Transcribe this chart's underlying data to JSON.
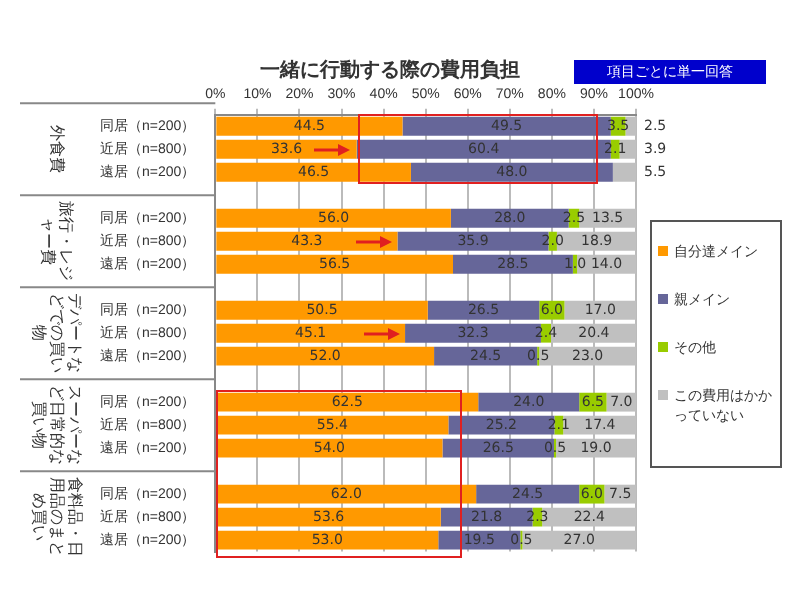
{
  "chart_data": {
    "type": "bar",
    "orientation": "horizontal",
    "stacked": true,
    "title": "一緒に行動する際の費用負担",
    "annotations": [
      "項目ごとに単一回答",
      "外食費",
      "旅行・レジャー費",
      "デパートなどでの買い物",
      "スーパーなど日常的な買い物",
      "食料品・日用品のまとめ買い"
    ],
    "categories": [
      "同居（n=200）",
      "近居（n=800）",
      "遠居（n=200）",
      null,
      "同居（n=200）",
      "近居（n=800）",
      "遠居（n=200）",
      null,
      "同居（n=200）",
      "近居（n=800）",
      "遠居（n=200）",
      null,
      "同居（n=200）",
      "近居（n=800）",
      "遠居（n=200）",
      null,
      "同居（n=200）",
      "近居（n=800）",
      "遠居（n=200）"
    ],
    "series": [
      {
        "name": "自分達メイン",
        "color": "#ff9900",
        "values": [
          44.5,
          33.6,
          46.5,
          null,
          56.0,
          43.3,
          56.5,
          null,
          50.5,
          45.1,
          52.0,
          null,
          62.5,
          55.4,
          54.0,
          null,
          62.0,
          53.6,
          53.0
        ],
        "value_labels": [
          "44.5",
          "33.6",
          "46.5",
          null,
          "56.0",
          "43.3",
          "56.5",
          null,
          "50.5",
          "45.1",
          "52.0",
          null,
          "62.5",
          "55.4",
          "54.0",
          null,
          "62.0",
          "53.6",
          "53.0"
        ]
      },
      {
        "name": "親メイン",
        "color": "#666699",
        "values": [
          49.5,
          60.4,
          48.0,
          null,
          28.0,
          35.9,
          28.5,
          null,
          26.5,
          32.3,
          24.5,
          null,
          24.0,
          25.2,
          26.5,
          null,
          24.5,
          21.8,
          19.5
        ],
        "value_labels": [
          "49.5",
          "60.4",
          "48.0",
          null,
          "28.0",
          "35.9",
          "28.5",
          null,
          "26.5",
          "32.3",
          "24.5",
          null,
          "24.0",
          "25.2",
          "26.5",
          null,
          "24.5",
          "21.8",
          "19.5"
        ]
      },
      {
        "name": "その他",
        "color": "#99cc00",
        "values": [
          3.5,
          2.1,
          0,
          null,
          2.5,
          2.0,
          1.0,
          null,
          6.0,
          2.4,
          0.5,
          null,
          6.5,
          2.1,
          0.5,
          null,
          6.0,
          2.3,
          0.5
        ],
        "value_labels": [
          "3.5",
          "2.1",
          null,
          null,
          "2.5",
          "2.0",
          "1.0",
          null,
          "6.0",
          "2.4",
          "0.5",
          null,
          "6.5",
          "2.1",
          "0.5",
          null,
          "6.0",
          "2.3",
          "0.5"
        ]
      },
      {
        "name": "この費用はかかっていない",
        "color": "#c0c0c0",
        "values": [
          2.5,
          3.9,
          5.5,
          null,
          13.5,
          18.9,
          14.0,
          null,
          17.0,
          20.4,
          23.0,
          null,
          7.0,
          17.4,
          19.0,
          null,
          7.5,
          22.4,
          27.0
        ],
        "value_labels": [
          "2.5",
          "3.9",
          "5.5",
          null,
          "13.5",
          "18.9",
          "14.0",
          null,
          "17.0",
          "20.4",
          "23.0",
          null,
          "7.0",
          "17.4",
          "19.0",
          null,
          "7.5",
          "22.4",
          "27.0"
        ]
      }
    ],
    "xlim": [
      0,
      100
    ],
    "xticks": [
      {
        "value": 0,
        "label": "0%"
      },
      {
        "value": 10,
        "label": "10%"
      },
      {
        "value": 20,
        "label": "20%"
      },
      {
        "value": 30,
        "label": "30%"
      },
      {
        "value": 40,
        "label": "40%"
      },
      {
        "value": 50,
        "label": "50%"
      },
      {
        "value": 60,
        "label": "60%"
      },
      {
        "value": 70,
        "label": "70%"
      },
      {
        "value": 80,
        "label": "80%"
      },
      {
        "value": 90,
        "label": "90%"
      },
      {
        "value": 100,
        "label": "100%"
      }
    ],
    "grid": "x",
    "legend": "right"
  }
}
